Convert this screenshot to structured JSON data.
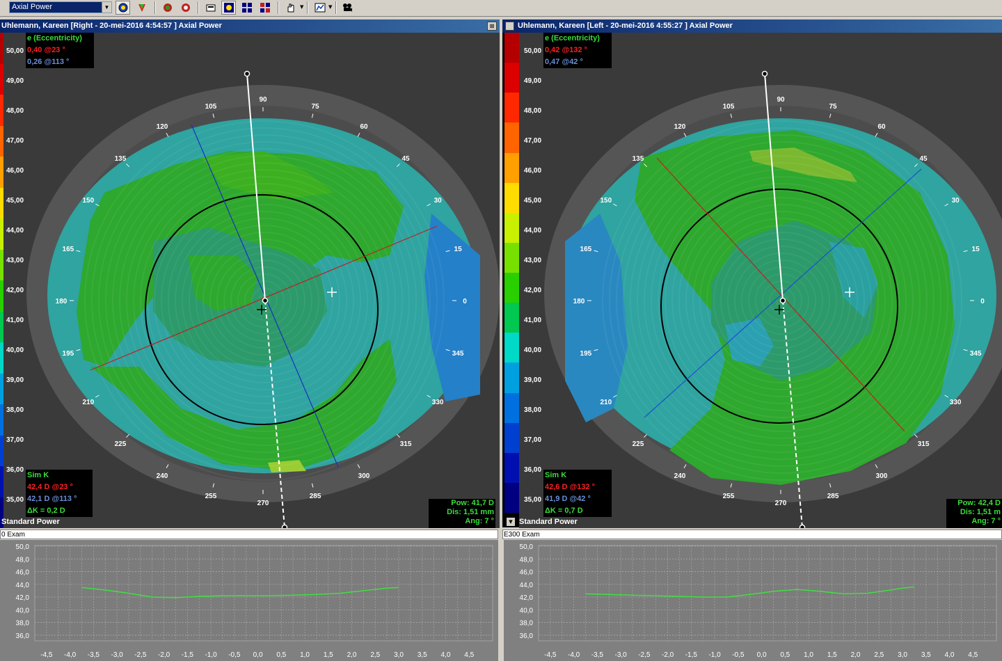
{
  "toolbar": {
    "dropdown_value": "Axial Power"
  },
  "scale": {
    "labels": [
      "50,00",
      "49,00",
      "48,00",
      "47,00",
      "46,00",
      "45,00",
      "44,00",
      "43,00",
      "42,00",
      "41,00",
      "40,00",
      "39,00",
      "38,00",
      "37,00",
      "36,00",
      "35,00"
    ],
    "colors": [
      "#b40000",
      "#dc0000",
      "#ff2800",
      "#ff6400",
      "#ffa000",
      "#ffdc00",
      "#c8f000",
      "#78e000",
      "#28d000",
      "#00c850",
      "#00d8c8",
      "#00a0e0",
      "#0070e0",
      "#0040d0",
      "#0010b0",
      "#000080"
    ]
  },
  "angle_labels": [
    "0",
    "15",
    "30",
    "45",
    "60",
    "75",
    "90",
    "105",
    "120",
    "135",
    "150",
    "165",
    "180",
    "195",
    "210",
    "225",
    "240",
    "255",
    "270",
    "285",
    "300",
    "315",
    "330",
    "345"
  ],
  "panels": [
    {
      "title": "Uhlemann, Kareen [Right - 20-mei-2016 4:54:57 ] Axial Power",
      "ecc_title": "e (Eccentricity)",
      "ecc_red": "0,40 @23 °",
      "ecc_blue": "0,26 @113 °",
      "simk_title": "Sim K",
      "simk_red": "42,4 D @23 °",
      "simk_blue": "42,1 D @113 °",
      "simk_dk": "ΔK = 0,2 D",
      "pow": "Pow: 41,7 D",
      "dis": "Dis: 1,51 mm",
      "ang": "Ang: 7 °",
      "footer": "Standard Power",
      "exam": "0 Exam"
    },
    {
      "title": "Uhlemann, Kareen [Left - 20-mei-2016 4:55:27 ] Axial Power",
      "ecc_title": "e (Eccentricity)",
      "ecc_red": "0,42 @132 °",
      "ecc_blue": "0,47 @42 °",
      "simk_title": "Sim K",
      "simk_red": "42,6 D @132 °",
      "simk_blue": "41,9 D @42 °",
      "simk_dk": "ΔK = 0,7 D",
      "pow": "Pow: 42,4 D",
      "dis": "Dis: 1,51 m",
      "ang": "Ang: 7 °",
      "footer": "Standard Power",
      "exam": "E300 Exam"
    }
  ],
  "profile": {
    "y_ticks": [
      "50,0",
      "48,0",
      "46,0",
      "44,0",
      "42,0",
      "40,0",
      "38,0",
      "36,0"
    ],
    "x_ticks": [
      "-4,5",
      "-4,0",
      "-3,5",
      "-3,0",
      "-2,5",
      "-2,0",
      "-1,5",
      "-1,0",
      "-0,5",
      "0,0",
      "0,5",
      "1,0",
      "1,5",
      "2,0",
      "2,5",
      "3,0",
      "3,5",
      "4,0",
      "4,5"
    ],
    "series_left": {
      "x": [
        -3.75,
        -3.25,
        -2.75,
        -2.25,
        -1.75,
        -1.25,
        -0.75,
        -0.25,
        0.25,
        0.75,
        1.25,
        1.75,
        2.25,
        2.75,
        3.0
      ],
      "y": [
        43.5,
        43.1,
        42.6,
        42.0,
        41.9,
        42.1,
        42.2,
        42.2,
        42.2,
        42.3,
        42.4,
        42.6,
        43.0,
        43.4,
        43.5
      ]
    },
    "series_right": {
      "x": [
        -3.75,
        -3.25,
        -2.75,
        -2.25,
        -1.75,
        -1.25,
        -0.75,
        -0.25,
        0.25,
        0.75,
        1.25,
        1.75,
        2.25,
        2.75,
        3.0,
        3.25
      ],
      "y": [
        42.5,
        42.4,
        42.3,
        42.2,
        42.1,
        42.0,
        42.0,
        42.4,
        42.9,
        43.2,
        42.9,
        42.5,
        42.6,
        43.1,
        43.4,
        43.6
      ]
    }
  }
}
